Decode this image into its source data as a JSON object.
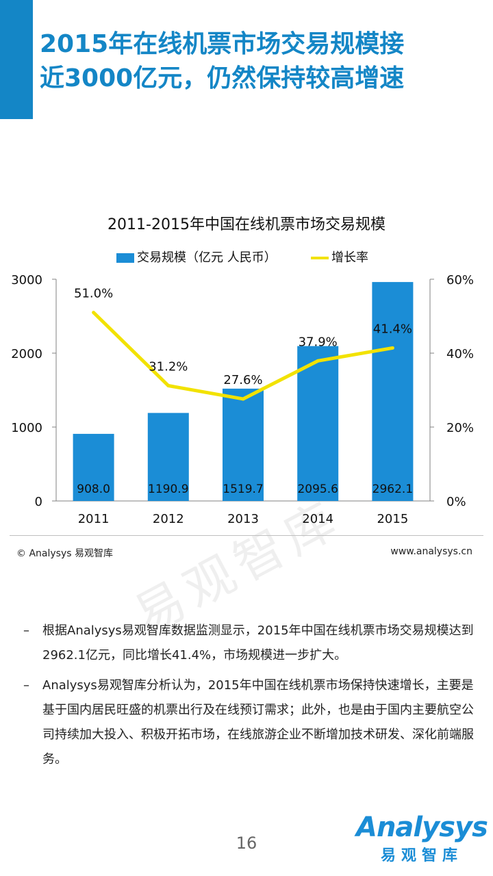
{
  "headline": {
    "line1": "2015年在线机票市场交易规模接",
    "line2": "近3000亿元，仍然保持较高增速"
  },
  "chart_data": {
    "type": "bar",
    "title": "2011-2015年中国在线机票市场交易规模",
    "categories": [
      "2011",
      "2012",
      "2013",
      "2014",
      "2015"
    ],
    "series": [
      {
        "name": "交易规模（亿元 人民币）",
        "values": [
          908.0,
          1190.9,
          1519.7,
          2095.6,
          2962.1
        ],
        "labels": [
          "908.0",
          "1190.9",
          "1519.7",
          "2095.6",
          "2962.1"
        ],
        "axis": "left"
      },
      {
        "name": "增长率",
        "type": "line",
        "values": [
          51.0,
          31.2,
          27.6,
          37.9,
          41.4
        ],
        "labels": [
          "51.0%",
          "31.2%",
          "27.6%",
          "37.9%",
          "41.4%"
        ],
        "axis": "right"
      }
    ],
    "y_left": {
      "min": 0,
      "max": 3000,
      "ticks": [
        "0",
        "1000",
        "2000",
        "3000"
      ]
    },
    "y_right": {
      "min": 0,
      "max": 60,
      "ticks": [
        "0%",
        "20%",
        "40%",
        "60%"
      ]
    },
    "colors": {
      "bar": "#1B8DD6",
      "line": "#F2E200"
    },
    "watermark": "易观智库"
  },
  "source": {
    "left": "© Analysys 易观智库",
    "right": "www.analysys.cn"
  },
  "bullets": [
    {
      "dash": "–",
      "text": "根据Analysys易观智库数据监测显示，2015年中国在线机票市场交易规模达到2962.1亿元，同比增长41.4%，市场规模进一步扩大。"
    },
    {
      "dash": "–",
      "text": "Analysys易观智库分析认为，2015年中国在线机票市场保持快速增长，主要是基于国内居民旺盛的机票出行及在线预订需求；此外，也是由于国内主要航空公司持续加大投入、积极开拓市场，在线旅游企业不断增加技术研发、深化前端服务。"
    }
  ],
  "page_number": "16",
  "logo": {
    "word": "Analysys",
    "cn": "易观智库"
  },
  "colors": {
    "accent": "#1486C6"
  }
}
